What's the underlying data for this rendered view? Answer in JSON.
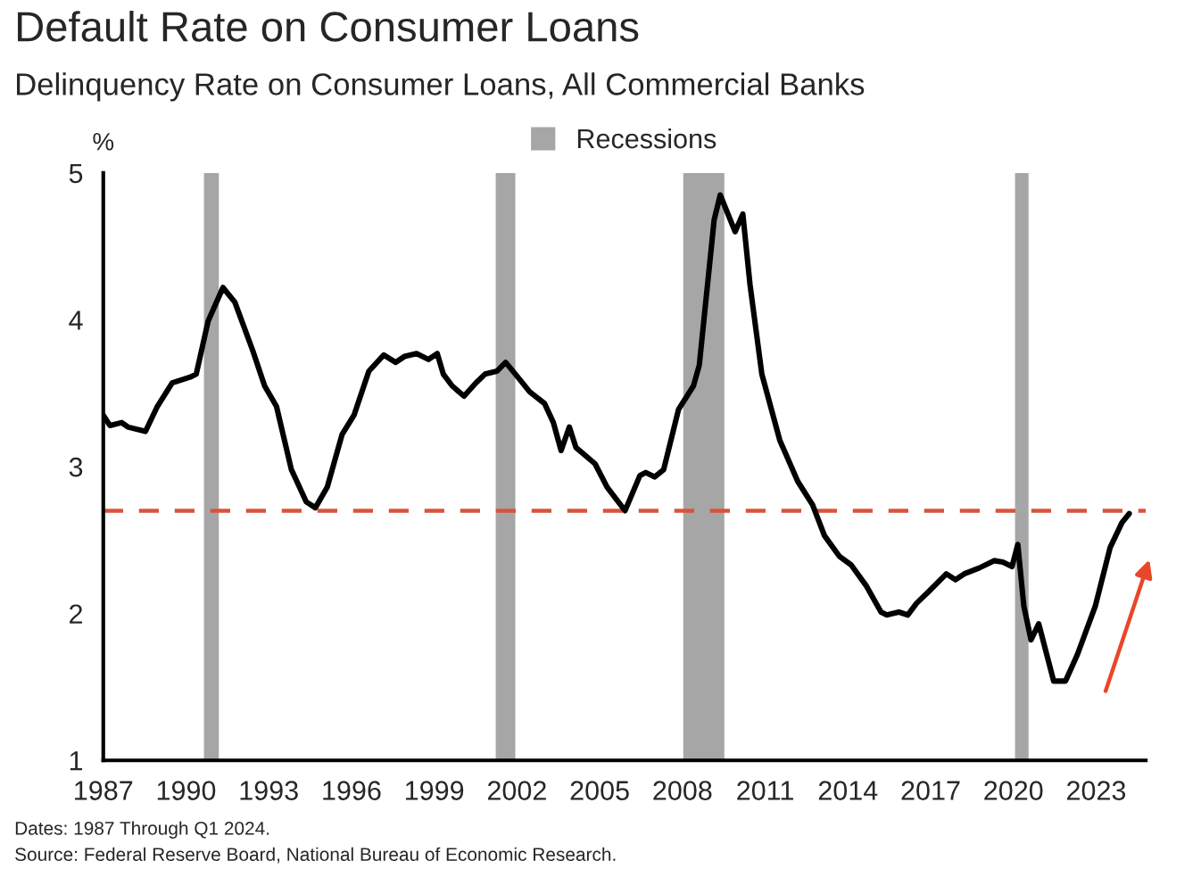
{
  "chart_data": {
    "type": "line",
    "title": "Default Rate on Consumer Loans",
    "subtitle": "Delinquency Rate on Consumer Loans, All Commercial Banks",
    "ylabel": "%",
    "x": [
      1987.0,
      1987.24,
      1987.67,
      1987.89,
      1988.53,
      1988.96,
      1989.5,
      1990.15,
      1990.37,
      1990.8,
      1991.34,
      1991.77,
      1992.42,
      1992.85,
      1993.28,
      1993.82,
      1994.36,
      1994.69,
      1995.12,
      1995.66,
      1996.09,
      1996.63,
      1997.17,
      1997.6,
      1997.92,
      1998.36,
      1998.79,
      1999.11,
      1999.33,
      1999.65,
      2000.08,
      2000.51,
      2000.84,
      2001.27,
      2001.59,
      2002.03,
      2002.46,
      2003.0,
      2003.32,
      2003.6,
      2003.9,
      2004.14,
      2004.83,
      2005.27,
      2005.92,
      2006.46,
      2006.67,
      2006.99,
      2007.32,
      2007.86,
      2008.4,
      2008.61,
      2009.15,
      2009.37,
      2009.91,
      2010.19,
      2010.45,
      2010.88,
      2011.53,
      2012.18,
      2012.72,
      2013.15,
      2013.69,
      2014.12,
      2014.66,
      2015.2,
      2015.41,
      2015.85,
      2016.17,
      2016.49,
      2016.93,
      2017.57,
      2017.9,
      2018.22,
      2018.76,
      2019.3,
      2019.62,
      2019.95,
      2020.16,
      2020.38,
      2020.64,
      2020.92,
      2021.46,
      2021.89,
      2022.32,
      2022.97,
      2023.51,
      2023.94,
      2024.2
    ],
    "series": [
      {
        "color": "#000000",
        "values": [
          3.35,
          3.28,
          3.3,
          3.27,
          3.24,
          3.41,
          3.57,
          3.61,
          3.63,
          3.99,
          4.22,
          4.12,
          3.79,
          3.55,
          3.41,
          2.98,
          2.76,
          2.72,
          2.86,
          3.22,
          3.35,
          3.65,
          3.76,
          3.71,
          3.75,
          3.77,
          3.73,
          3.77,
          3.63,
          3.55,
          3.48,
          3.57,
          3.63,
          3.65,
          3.71,
          3.61,
          3.51,
          3.43,
          3.3,
          3.11,
          3.27,
          3.13,
          3.02,
          2.86,
          2.7,
          2.94,
          2.96,
          2.93,
          2.98,
          3.39,
          3.55,
          3.69,
          4.68,
          4.85,
          4.6,
          4.72,
          4.24,
          3.63,
          3.18,
          2.9,
          2.74,
          2.53,
          2.39,
          2.33,
          2.19,
          2.01,
          1.99,
          2.01,
          1.99,
          2.07,
          2.15,
          2.27,
          2.23,
          2.27,
          2.31,
          2.36,
          2.35,
          2.32,
          2.47,
          2.05,
          1.82,
          1.93,
          1.54,
          1.54,
          1.72,
          2.05,
          2.45,
          2.62,
          2.68
        ]
      }
    ],
    "xlim": [
      1987,
      2024.8
    ],
    "xticks": [
      1987,
      1990,
      1993,
      1996,
      1999,
      2002,
      2005,
      2008,
      2011,
      2014,
      2017,
      2020,
      2023
    ],
    "ylim": [
      1,
      5
    ],
    "yticks": [
      1,
      2,
      3,
      4,
      5
    ],
    "ref_lines": [
      {
        "axis": "y",
        "value": 2.7,
        "color": "#d9533b",
        "line_style": "dashed"
      }
    ],
    "bands": [
      {
        "axis": "x",
        "from": 1990.65,
        "to": 1991.19,
        "label": "Recessions",
        "color": "#a6a6a6"
      },
      {
        "axis": "x",
        "from": 2001.23,
        "to": 2001.94,
        "color": "#a6a6a6"
      },
      {
        "axis": "x",
        "from": 2008.03,
        "to": 2009.52,
        "color": "#a6a6a6"
      },
      {
        "axis": "x",
        "from": 2020.06,
        "to": 2020.55,
        "color": "#a6a6a6"
      }
    ],
    "legend": "top",
    "grid": false,
    "annotations": [
      "Dates: 1987 Through Q1 2024.",
      "Source: Federal Reserve Board, National Bureau of Economic Research."
    ]
  }
}
